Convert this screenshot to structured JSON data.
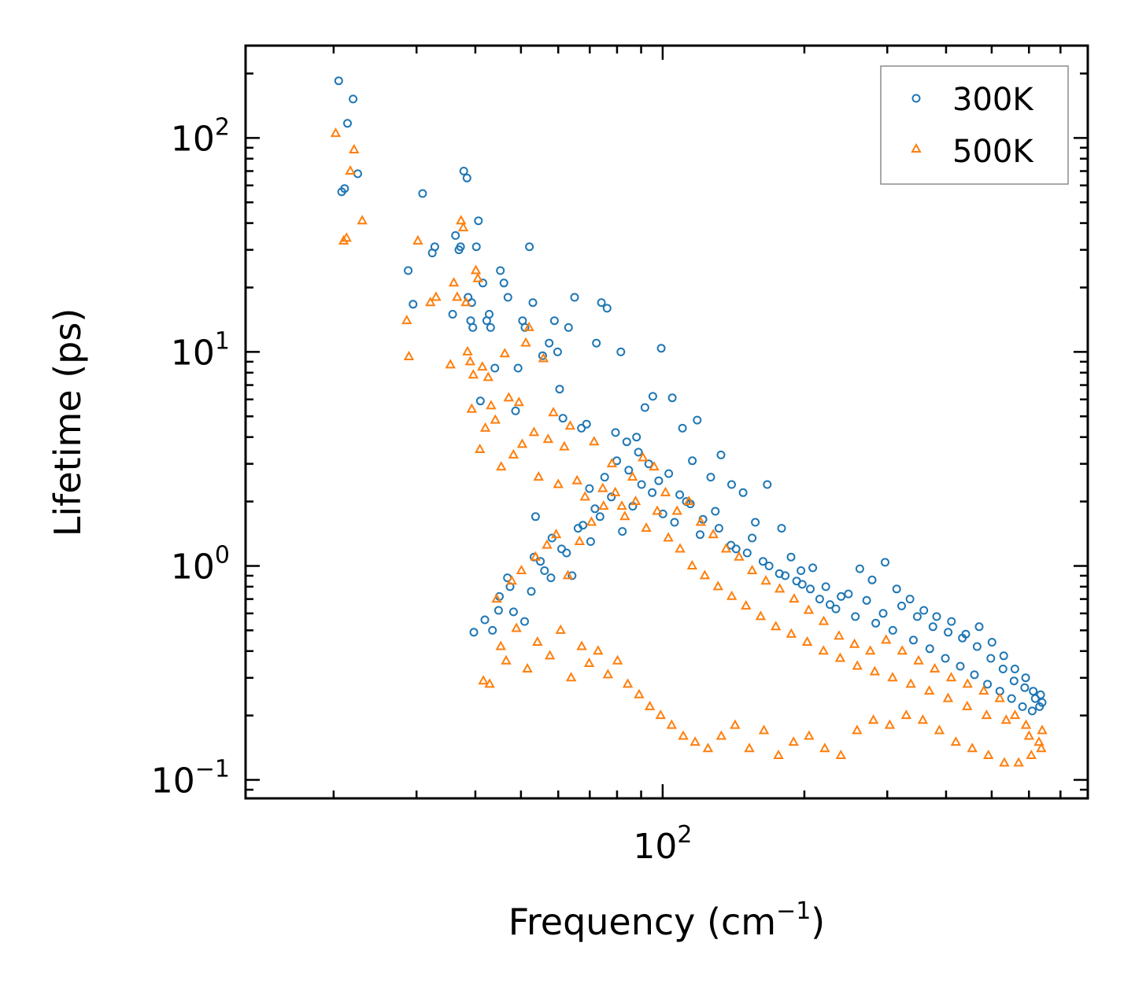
{
  "chart_data": {
    "type": "scatter",
    "title": "",
    "xscale": "log",
    "yscale": "log",
    "xlim": [
      13,
      800
    ],
    "ylim": [
      0.082,
      270
    ],
    "xlabel": {
      "base": "Frequency (cm",
      "sup": "−1",
      "tail": ")"
    },
    "ylabel": "Lifetime (ps)",
    "xticks": [
      {
        "value": 100,
        "base": "10",
        "exp": "2"
      }
    ],
    "yticks": [
      {
        "value": 0.1,
        "base": "10",
        "exp": "−1"
      },
      {
        "value": 1,
        "base": "10",
        "exp": "0"
      },
      {
        "value": 10,
        "base": "10",
        "exp": "1"
      },
      {
        "value": 100,
        "base": "10",
        "exp": "2"
      }
    ],
    "legend": {
      "location": "top-right"
    },
    "series": [
      {
        "name": "300K",
        "marker": "circle",
        "color": "#1f77b4",
        "x": [
          20.5,
          21.4,
          20.8,
          21.1,
          22.0,
          22.5,
          28.8,
          29.5,
          30.9,
          32.4,
          32.8,
          35.8,
          36.3,
          36.9,
          37.2,
          37.8,
          38.4,
          38.6,
          39.1,
          39.3,
          39.5,
          40.2,
          40.6,
          41.0,
          41.5,
          42.3,
          42.8,
          43.1,
          44.0,
          45.2,
          46.0,
          46.9,
          48.7,
          49.3,
          50.4,
          51.0,
          52.1,
          53.0,
          53.7,
          55.6,
          57.4,
          58.9,
          59.8,
          60.4,
          61.4,
          63.1,
          65.0,
          67.2,
          68.9,
          72.3,
          74.1,
          76.2,
          79.4,
          81.5,
          83.9,
          88.0,
          91.7,
          95.3,
          99.3,
          104.8,
          110.2,
          115.6,
          118.4,
          126.5,
          133.0,
          140.1,
          148.2,
          157.3,
          166.8,
          178.9,
          187.4,
          196.7,
          208.4,
          222.1,
          239.4,
          262.3,
          278.6,
          296.8,
          314.1,
          335.2,
          358.8,
          382.0,
          410.6,
          440.5,
          470.2,
          500.8,
          530.3,
          560.1,
          590.4,
          612.7,
          635.2,
          43.5,
          45.0,
          46.8,
          48.2,
          50.9,
          53.3,
          56.1,
          58.2,
          61.0,
          64.2,
          67.7,
          70.3,
          73.6,
          77.8,
          82.1,
          86.4,
          90.2,
          95.0,
          100.1,
          106.0,
          112.3,
          120.1,
          129.4,
          139.7,
          151.2,
          163.4,
          177.0,
          192.6,
          205.9,
          226.7,
          248.1,
          271.3,
          294.0,
          321.9,
          347.5,
          375.2,
          404.1,
          433.3,
          465.6,
          497.9,
          528.4,
          557.8,
          587.6,
          618.9,
          640.0,
          39.7,
          41.9,
          44.8,
          47.4,
          52.6,
          55.0,
          57.9,
          62.5,
          66.1,
          69.9,
          71.8,
          75.3,
          79.9,
          84.7,
          88.8,
          93.4,
          98.1,
          103.0,
          108.7,
          114.5,
          121.8,
          131.7,
          143.2,
          154.9,
          168.3,
          182.1,
          197.9,
          215.6,
          233.4,
          256.6,
          283.5,
          308.2,
          341.0,
          369.4,
          398.6,
          428.8,
          459.5,
          489.9,
          520.3,
          551.2,
          581.5,
          609.6,
          631.8
        ],
        "y": [
          185,
          117,
          56,
          58,
          152,
          68,
          24,
          16.7,
          55,
          29,
          31,
          15,
          35,
          30,
          31,
          70,
          65,
          18,
          14,
          17,
          13,
          31,
          41,
          5.9,
          21,
          14,
          15,
          13,
          8.4,
          24,
          21,
          18,
          5.3,
          8.4,
          14,
          13,
          31,
          17,
          1.7,
          9.6,
          11,
          14,
          10,
          6.7,
          4.9,
          13,
          18,
          4.4,
          4.6,
          11,
          17,
          16,
          4.2,
          10,
          3.8,
          4.0,
          5.5,
          6.2,
          10.4,
          6.1,
          4.4,
          3.1,
          4.8,
          2.6,
          3.3,
          2.4,
          2.2,
          1.6,
          2.4,
          1.5,
          1.1,
          0.95,
          0.98,
          0.8,
          0.72,
          0.97,
          0.86,
          1.04,
          0.78,
          0.7,
          0.62,
          0.58,
          0.55,
          0.48,
          0.52,
          0.44,
          0.38,
          0.33,
          0.3,
          0.26,
          0.25,
          0.5,
          0.72,
          0.88,
          0.61,
          0.55,
          1.1,
          0.95,
          1.35,
          1.2,
          0.9,
          1.55,
          1.3,
          1.7,
          2.1,
          1.45,
          1.9,
          2.4,
          2.2,
          1.75,
          1.6,
          2.0,
          1.4,
          1.8,
          1.25,
          1.15,
          1.05,
          0.92,
          0.85,
          0.78,
          0.66,
          0.74,
          0.69,
          0.6,
          0.65,
          0.58,
          0.52,
          0.49,
          0.46,
          0.42,
          0.37,
          0.33,
          0.29,
          0.27,
          0.24,
          0.23,
          0.49,
          0.56,
          0.62,
          0.8,
          0.76,
          1.05,
          0.88,
          1.15,
          1.5,
          2.3,
          1.85,
          2.6,
          3.1,
          2.8,
          3.4,
          3.0,
          2.5,
          2.7,
          2.15,
          1.95,
          1.65,
          1.5,
          1.2,
          1.35,
          1.0,
          0.9,
          0.82,
          0.7,
          0.63,
          0.58,
          0.54,
          0.5,
          0.45,
          0.41,
          0.37,
          0.34,
          0.31,
          0.28,
          0.26,
          0.24,
          0.22,
          0.21,
          0.22
        ]
      },
      {
        "name": "500K",
        "marker": "triangle",
        "color": "#ff7f0e",
        "x": [
          20.2,
          21.0,
          21.3,
          21.7,
          22.1,
          23.0,
          28.6,
          28.9,
          30.2,
          32.1,
          33.0,
          35.4,
          36.0,
          36.6,
          37.3,
          37.7,
          38.2,
          38.5,
          39.0,
          39.3,
          39.6,
          40.1,
          40.5,
          40.9,
          41.4,
          42.0,
          42.6,
          43.2,
          44.1,
          45.4,
          46.2,
          47.1,
          48.2,
          49.5,
          50.3,
          51.2,
          52.0,
          53.3,
          54.5,
          55.8,
          57.1,
          58.6,
          60.0,
          61.8,
          63.6,
          65.8,
          68.4,
          71.5,
          74.6,
          78.0,
          81.9,
          86.3,
          90.8,
          95.9,
          101.4,
          107.3,
          113.7,
          120.5,
          128.1,
          136.4,
          145.3,
          154.9,
          165.7,
          177.3,
          190.2,
          204.3,
          219.8,
          236.9,
          255.6,
          276.1,
          298.3,
          322.8,
          349.6,
          378.5,
          410.2,
          444.3,
          480.9,
          520.1,
          560.3,
          600.2,
          630.0,
          41.6,
          42.9,
          45.3,
          46.5,
          48.9,
          51.6,
          54.2,
          57.6,
          60.7,
          63.9,
          67.3,
          69.8,
          72.9,
          76.5,
          80.2,
          84.3,
          89.1,
          93.9,
          99.0,
          104.5,
          110.6,
          117.2,
          124.8,
          133.2,
          142.5,
          152.8,
          164.1,
          176.2,
          189.7,
          204.6,
          221.0,
          239.1,
          258.8,
          280.3,
          303.7,
          329.2,
          357.0,
          387.1,
          419.6,
          454.6,
          492.0,
          531.8,
          570.4,
          606.9,
          637.2,
          44.4,
          47.8,
          50.1,
          53.7,
          56.8,
          59.4,
          62.9,
          66.6,
          70.6,
          74.9,
          79.3,
          83.1,
          87.6,
          92.3,
          97.4,
          102.8,
          108.9,
          115.5,
          122.9,
          131.1,
          140.2,
          150.3,
          161.5,
          173.9,
          187.6,
          202.8,
          219.6,
          238.3,
          259.1,
          282.2,
          307.9,
          336.6,
          368.4,
          403.9,
          443.5,
          487.6,
          536.7,
          591.4,
          640.0
        ],
        "y": [
          105,
          33,
          34,
          70,
          88,
          41,
          14,
          9.5,
          33,
          17,
          18,
          8.7,
          21,
          18,
          41,
          38,
          17,
          10,
          9.0,
          5.4,
          7.8,
          24,
          22,
          3.5,
          8.5,
          4.4,
          7.6,
          5.6,
          4.8,
          2.9,
          9.8,
          6.1,
          3.3,
          5.8,
          3.7,
          11,
          13,
          4.2,
          2.6,
          9.3,
          3.9,
          5.2,
          2.4,
          3.6,
          4.5,
          2.5,
          2.1,
          3.8,
          2.3,
          3.0,
          1.9,
          2.6,
          3.2,
          2.9,
          2.2,
          1.8,
          2.0,
          1.6,
          1.4,
          1.2,
          1.1,
          0.95,
          0.85,
          0.78,
          0.7,
          0.62,
          0.55,
          0.47,
          0.43,
          0.4,
          0.45,
          0.4,
          0.36,
          0.33,
          0.3,
          0.28,
          0.26,
          0.24,
          0.2,
          0.16,
          0.15,
          0.29,
          0.28,
          0.42,
          0.36,
          0.51,
          0.33,
          0.44,
          0.38,
          0.5,
          0.3,
          0.42,
          0.35,
          0.4,
          0.31,
          0.36,
          0.28,
          0.25,
          0.22,
          0.2,
          0.18,
          0.16,
          0.15,
          0.14,
          0.16,
          0.18,
          0.14,
          0.17,
          0.13,
          0.15,
          0.16,
          0.14,
          0.13,
          0.17,
          0.19,
          0.18,
          0.2,
          0.19,
          0.17,
          0.15,
          0.14,
          0.13,
          0.12,
          0.12,
          0.13,
          0.14,
          0.7,
          0.85,
          0.95,
          1.1,
          1.25,
          1.4,
          0.9,
          1.3,
          1.6,
          1.9,
          2.2,
          1.7,
          2.0,
          1.5,
          1.8,
          1.35,
          1.2,
          1.0,
          0.9,
          0.8,
          0.72,
          0.65,
          0.58,
          0.52,
          0.48,
          0.44,
          0.4,
          0.37,
          0.34,
          0.32,
          0.3,
          0.28,
          0.26,
          0.24,
          0.22,
          0.2,
          0.19,
          0.18,
          0.17
        ]
      }
    ]
  }
}
